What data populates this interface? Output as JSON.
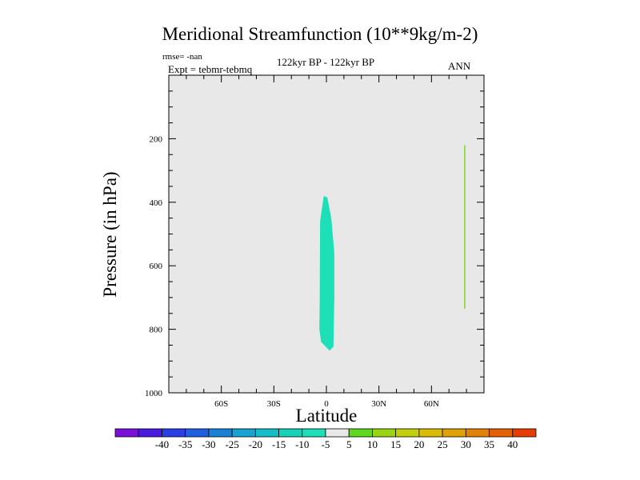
{
  "header": {
    "title": "Meridional Streamfunction (10**9kg/m-2)",
    "rmse": "rmse= -nan",
    "expt": "Expt = tebmr-tebmq",
    "period": "122kyr BP - 122kyr BP",
    "season": "ANN"
  },
  "chart_data": {
    "type": "contour",
    "title": "Meridional Streamfunction (10**9kg/m-2)",
    "xlabel": "Latitude",
    "ylabel": "Pressure (in hPa)",
    "xlim": [
      -90,
      90
    ],
    "ylim": [
      1000,
      0
    ],
    "x_ticks": [
      {
        "value": -60,
        "label": "60S"
      },
      {
        "value": -30,
        "label": "30S"
      },
      {
        "value": 0,
        "label": "0"
      },
      {
        "value": 30,
        "label": "30N"
      },
      {
        "value": 60,
        "label": "60N"
      }
    ],
    "y_ticks": [
      {
        "value": 200,
        "label": "200"
      },
      {
        "value": 400,
        "label": "400"
      },
      {
        "value": 600,
        "label": "600"
      },
      {
        "value": 800,
        "label": "800"
      },
      {
        "value": 1000,
        "label": "1000"
      }
    ],
    "background_color": "#e8e8e8",
    "filled_regions": [
      {
        "name": "negative-cell-equator",
        "level": "-5 to 0",
        "color": "#1de0b8",
        "points": [
          [
            -1.5,
            380
          ],
          [
            0.5,
            385
          ],
          [
            2.8,
            450
          ],
          [
            4.5,
            560
          ],
          [
            4.5,
            700
          ],
          [
            4.0,
            855
          ],
          [
            1.8,
            867
          ],
          [
            -3.0,
            840
          ],
          [
            -4.0,
            800
          ],
          [
            -3.8,
            700
          ],
          [
            -3.6,
            460
          ]
        ]
      }
    ],
    "lines": [
      {
        "name": "contour-line-north",
        "color": "#66cc00",
        "x": 79,
        "y_range": [
          220,
          735
        ]
      }
    ],
    "colorbar": {
      "labels": [
        "-40",
        "-35",
        "-30",
        "-25",
        "-20",
        "-15",
        "-10",
        "-5",
        "5",
        "10",
        "15",
        "20",
        "25",
        "30",
        "35",
        "40"
      ],
      "colors": [
        "#7a10d8",
        "#4b1ae0",
        "#2a3ee6",
        "#1f5fe0",
        "#1a82d6",
        "#16a3d0",
        "#14bdc9",
        "#15d2b9",
        "#1de0b8",
        "#e8e8e8",
        "#5fd91f",
        "#9bd412",
        "#c2cf0c",
        "#d9bb08",
        "#dea106",
        "#e18204",
        "#e46003",
        "#e63c02"
      ]
    }
  }
}
